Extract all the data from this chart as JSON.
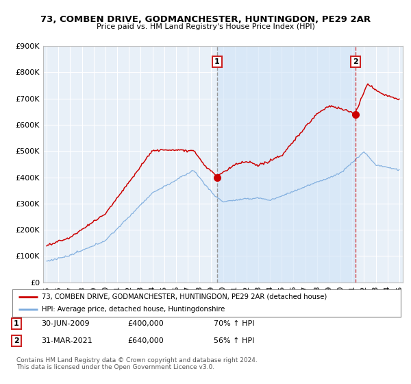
{
  "title": "73, COMBEN DRIVE, GODMANCHESTER, HUNTINGDON, PE29 2AR",
  "subtitle": "Price paid vs. HM Land Registry's House Price Index (HPI)",
  "ylim": [
    0,
    900000
  ],
  "yticks": [
    0,
    100000,
    200000,
    300000,
    400000,
    500000,
    600000,
    700000,
    800000,
    900000
  ],
  "ytick_labels": [
    "£0",
    "£100K",
    "£200K",
    "£300K",
    "£400K",
    "£500K",
    "£600K",
    "£700K",
    "£800K",
    "£900K"
  ],
  "red_color": "#cc0000",
  "blue_color": "#7aaadd",
  "shade_color": "#ddeeff",
  "point1_year": 2009.5,
  "point1_value": 400000,
  "point1_date": "30-JUN-2009",
  "point1_price": "£400,000",
  "point1_hpi": "70% ↑ HPI",
  "point2_year": 2021.25,
  "point2_value": 640000,
  "point2_date": "31-MAR-2021",
  "point2_price": "£640,000",
  "point2_hpi": "56% ↑ HPI",
  "legend_line1": "73, COMBEN DRIVE, GODMANCHESTER, HUNTINGDON, PE29 2AR (detached house)",
  "legend_line2": "HPI: Average price, detached house, Huntingdonshire",
  "footnote": "Contains HM Land Registry data © Crown copyright and database right 2024.\nThis data is licensed under the Open Government Licence v3.0.",
  "bg_color": "#ffffff",
  "plot_bg_color": "#e8f0f8",
  "grid_color": "#ffffff"
}
